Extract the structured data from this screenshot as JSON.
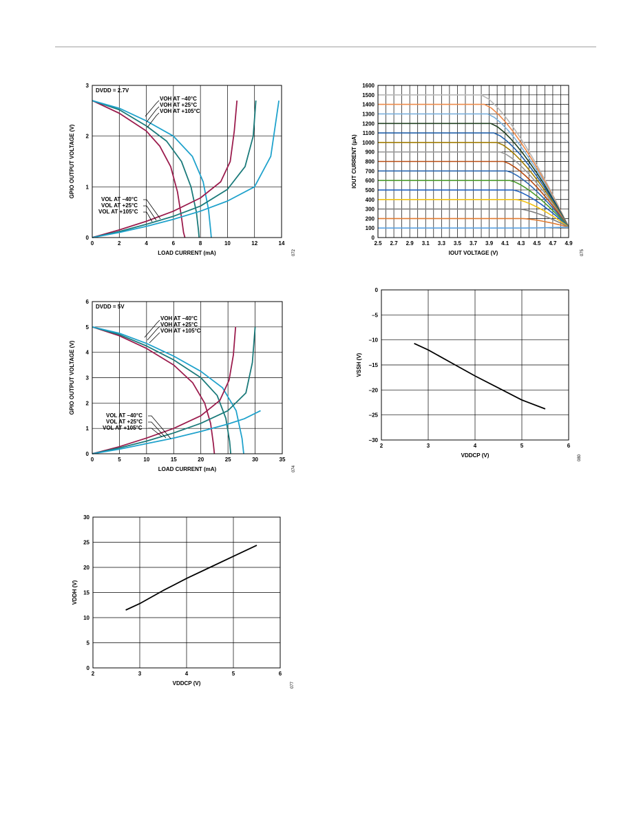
{
  "page": {
    "header_rule_color": "#999999"
  },
  "chart_data": [
    {
      "id": "c1",
      "type": "line",
      "xlabel": "LOAD CURRENT (mA)",
      "ylabel": "GPIO OUTPUT VOLTAGE (V)",
      "xlim": [
        0,
        14
      ],
      "ylim": [
        0,
        3
      ],
      "xticks": [
        0,
        2,
        4,
        6,
        8,
        10,
        12,
        14
      ],
      "yticks": [
        0,
        1,
        2,
        3
      ],
      "grid": true,
      "figure_id": "072",
      "annotations": [
        {
          "text": "DVDD = 2.7V"
        },
        {
          "text": "VOH AT –40°C"
        },
        {
          "text": "VOH AT +25°C"
        },
        {
          "text": "VOH AT +105°C"
        },
        {
          "text": "VOL AT –40°C"
        },
        {
          "text": "VOL AT +25°C"
        },
        {
          "text": "VOL AT +105°C"
        }
      ],
      "series": [
        {
          "color": "#9b1c4d",
          "x": [
            0,
            2,
            4,
            5,
            5.8,
            6.3,
            6.6,
            6.75,
            6.85
          ],
          "y": [
            2.7,
            2.45,
            2.1,
            1.8,
            1.4,
            0.9,
            0.4,
            0.1,
            0
          ]
        },
        {
          "color": "#1a7a7a",
          "x": [
            0,
            2,
            4,
            5.5,
            6.6,
            7.3,
            7.7,
            7.85,
            7.9
          ],
          "y": [
            2.7,
            2.52,
            2.2,
            1.9,
            1.5,
            1.0,
            0.5,
            0.15,
            0
          ]
        },
        {
          "color": "#1fa2cc",
          "x": [
            0,
            2,
            4,
            6,
            7.4,
            8.2,
            8.6,
            8.75,
            8.8
          ],
          "y": [
            2.7,
            2.55,
            2.3,
            2.0,
            1.6,
            1.1,
            0.55,
            0.15,
            0
          ]
        },
        {
          "color": "#9b1c4d",
          "x": [
            0,
            2,
            4,
            6,
            8,
            9.5,
            10.2,
            10.5,
            10.7
          ],
          "y": [
            0,
            0.15,
            0.32,
            0.52,
            0.78,
            1.1,
            1.5,
            2.1,
            2.7
          ]
        },
        {
          "color": "#1a7a7a",
          "x": [
            0,
            2,
            4,
            6,
            8,
            10,
            11.3,
            11.9,
            12.1
          ],
          "y": [
            0,
            0.12,
            0.26,
            0.42,
            0.62,
            0.95,
            1.4,
            2.0,
            2.7
          ]
        },
        {
          "color": "#1fa2cc",
          "x": [
            0,
            2,
            4,
            6,
            8,
            10,
            12,
            13.2,
            13.8
          ],
          "y": [
            0,
            0.1,
            0.22,
            0.36,
            0.52,
            0.72,
            1.0,
            1.6,
            2.7
          ]
        }
      ]
    },
    {
      "id": "c2",
      "type": "line",
      "xlabel": "IOUT VOLTAGE (V)",
      "ylabel": "IOUT CURRENT (µA)",
      "xlim": [
        2.5,
        4.9
      ],
      "ylim": [
        0,
        1600
      ],
      "xticks": [
        2.5,
        2.7,
        2.9,
        3.1,
        3.3,
        3.5,
        3.7,
        3.9,
        4.1,
        4.3,
        4.5,
        4.7,
        4.9
      ],
      "xtick_labels": [
        "2.5",
        "2.7",
        "2.9",
        "3.1",
        "3.3",
        "3.5",
        "3.7",
        "3.9",
        "4.1",
        "4.3",
        "4.5",
        "4.7",
        "4.9"
      ],
      "yticks": [
        0,
        100,
        200,
        300,
        400,
        500,
        600,
        700,
        800,
        900,
        1000,
        1100,
        1200,
        1300,
        1400,
        1500,
        1600
      ],
      "minor_x_step": 0.1,
      "grid": true,
      "figure_id": "075",
      "series_levels": [
        1500,
        1400,
        1300,
        1200,
        1100,
        1000,
        900,
        800,
        700,
        600,
        500,
        400,
        300,
        200,
        100
      ],
      "series_colors": [
        "#b8b8b8",
        "#ee8a4a",
        "#7ab0dc",
        "#1f3f1f",
        "#1f5fa8",
        "#a07c00",
        "#9a9a9a",
        "#b84a10",
        "#2a66b0",
        "#4a9a2a",
        "#2060c0",
        "#f0c010",
        "#808080",
        "#e07a30",
        "#5aa0e0"
      ],
      "common_end": [
        4.9,
        110
      ]
    },
    {
      "id": "c3",
      "type": "line",
      "xlabel": "LOAD CURRENT (mA)",
      "ylabel": "GPIO OUTPUT VOLTAGE (V)",
      "xlim": [
        0,
        35
      ],
      "ylim": [
        0,
        6
      ],
      "xticks": [
        0,
        5,
        10,
        15,
        20,
        25,
        30,
        35
      ],
      "yticks": [
        0,
        1,
        2,
        3,
        4,
        5,
        6
      ],
      "grid": true,
      "figure_id": "074",
      "annotations": [
        {
          "text": "DVDD = 5V"
        },
        {
          "text": "VOH AT –40°C"
        },
        {
          "text": "VOH AT +25°C"
        },
        {
          "text": "VOH AT +105°C"
        },
        {
          "text": "VOL AT –40°C"
        },
        {
          "text": "VOL AT +25°C"
        },
        {
          "text": "VOL AT +105°C"
        }
      ],
      "series": [
        {
          "color": "#9b1c4d",
          "x": [
            0,
            5,
            10,
            15,
            18.5,
            20.7,
            21.8,
            22.3,
            22.5
          ],
          "y": [
            5,
            4.65,
            4.15,
            3.5,
            2.8,
            2.0,
            1.2,
            0.4,
            0
          ]
        },
        {
          "color": "#1a7a7a",
          "x": [
            0,
            5,
            10,
            15,
            20,
            23,
            24.6,
            25.3,
            25.5
          ],
          "y": [
            5,
            4.7,
            4.25,
            3.7,
            3.0,
            2.3,
            1.4,
            0.5,
            0
          ]
        },
        {
          "color": "#1fa2cc",
          "x": [
            0,
            5,
            10,
            15,
            20,
            24,
            26.5,
            27.6,
            27.9
          ],
          "y": [
            5,
            4.75,
            4.35,
            3.85,
            3.25,
            2.6,
            1.7,
            0.6,
            0
          ]
        },
        {
          "color": "#9b1c4d",
          "x": [
            0,
            5,
            10,
            15,
            20,
            23.5,
            25.2,
            26,
            26.4
          ],
          "y": [
            0,
            0.28,
            0.62,
            1.0,
            1.5,
            2.1,
            2.9,
            3.9,
            5.0
          ]
        },
        {
          "color": "#1a7a7a",
          "x": [
            0,
            5,
            10,
            15,
            20,
            25,
            28.3,
            29.5,
            30
          ],
          "y": [
            0,
            0.23,
            0.5,
            0.82,
            1.2,
            1.7,
            2.4,
            3.6,
            5.0
          ]
        },
        {
          "color": "#1fa2cc",
          "x": [
            0,
            5,
            10,
            15,
            20,
            25,
            28,
            31
          ],
          "y": [
            0,
            0.18,
            0.4,
            0.62,
            0.88,
            1.17,
            1.38,
            1.7
          ]
        }
      ]
    },
    {
      "id": "c4",
      "type": "line",
      "xlabel": "VDDCP (V)",
      "ylabel": "VSSH (V)",
      "xlim": [
        2,
        6
      ],
      "ylim": [
        -30,
        0
      ],
      "xticks": [
        2,
        3,
        4,
        5,
        6
      ],
      "yticks": [
        0,
        -5,
        -10,
        -15,
        -20,
        -25,
        -30
      ],
      "ytick_labels": [
        "0",
        "–5",
        "–10",
        "–15",
        "–20",
        "–25",
        "–30"
      ],
      "grid": true,
      "figure_id": "080",
      "series": [
        {
          "color": "#000000",
          "x": [
            2.7,
            3.0,
            3.5,
            4.0,
            4.5,
            5.0,
            5.5
          ],
          "y": [
            -10.7,
            -12.0,
            -14.6,
            -17.2,
            -19.6,
            -22.0,
            -23.8
          ]
        }
      ]
    },
    {
      "id": "c5",
      "type": "line",
      "xlabel": "VDDCP (V)",
      "ylabel": "VDDH (V)",
      "xlim": [
        2,
        6
      ],
      "ylim": [
        0,
        30
      ],
      "xticks": [
        2,
        3,
        4,
        5,
        6
      ],
      "yticks": [
        0,
        5,
        10,
        15,
        20,
        25,
        30
      ],
      "grid": true,
      "figure_id": "077",
      "series": [
        {
          "color": "#000000",
          "x": [
            2.7,
            3.0,
            3.5,
            4.0,
            4.5,
            5.0,
            5.5
          ],
          "y": [
            11.5,
            12.8,
            15.4,
            17.8,
            20.0,
            22.2,
            24.4
          ]
        }
      ]
    }
  ]
}
